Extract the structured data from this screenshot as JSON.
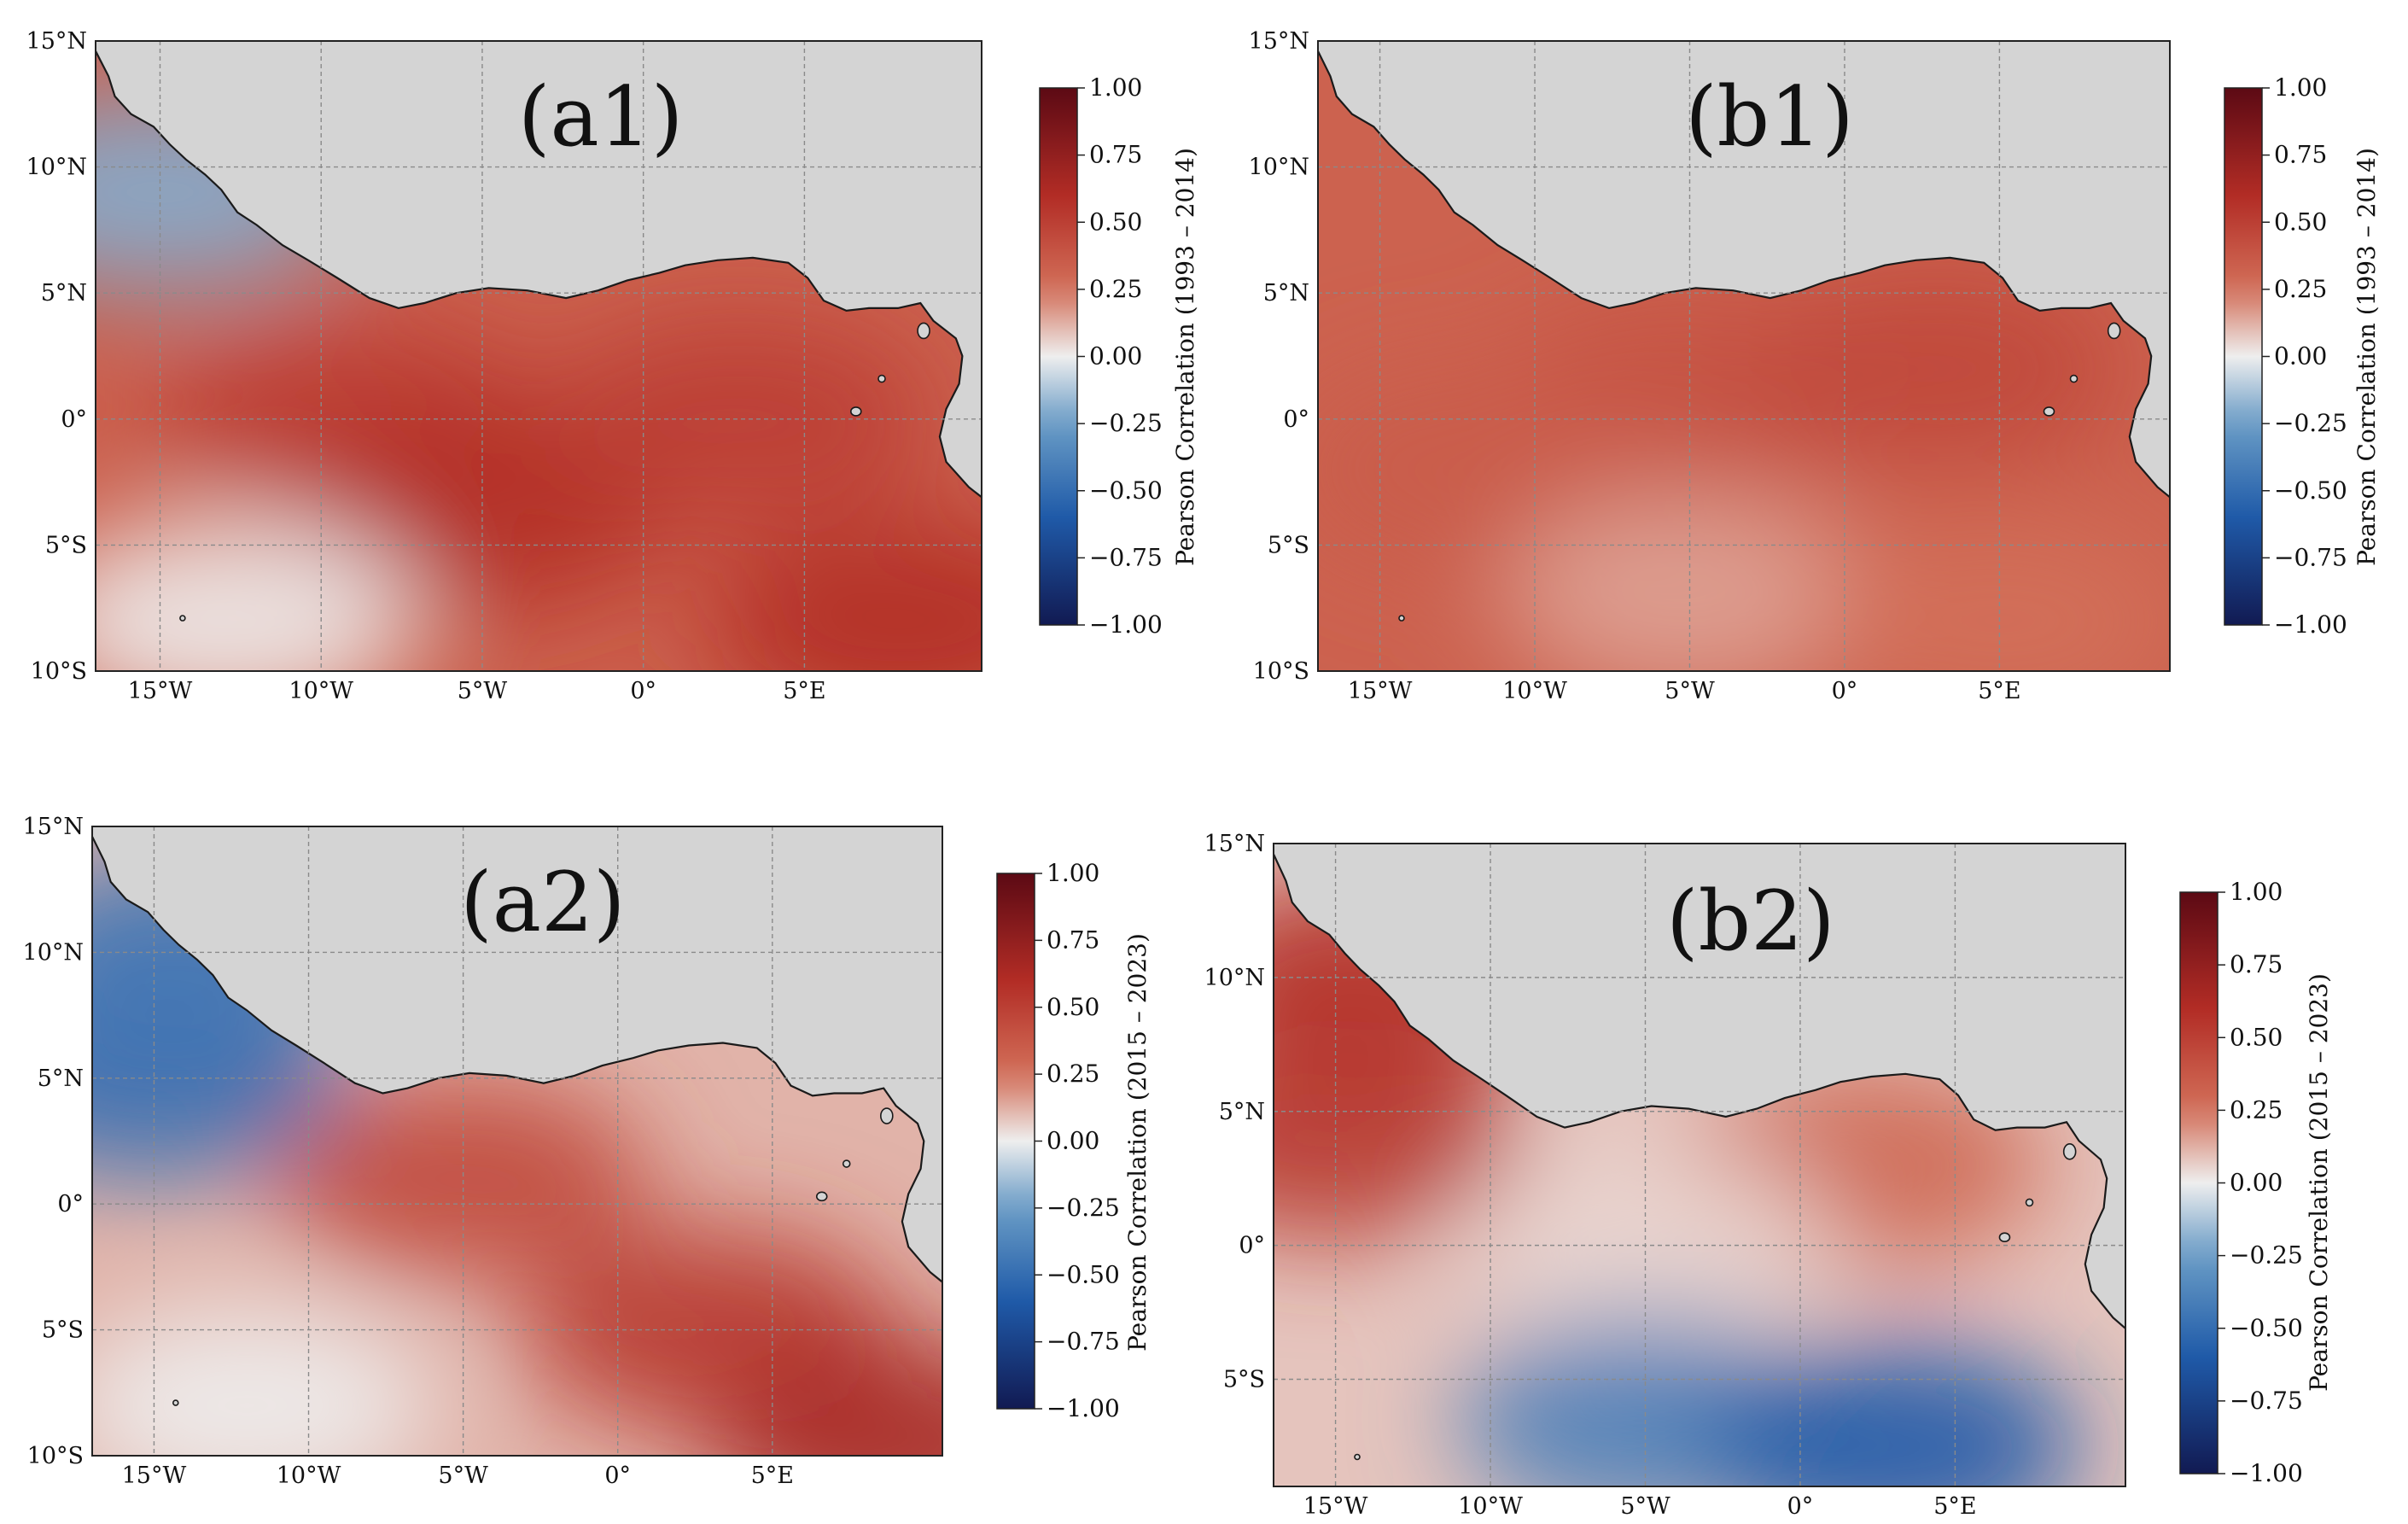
{
  "figure": {
    "colorbar_ticks": [
      "1.00",
      "0.75",
      "0.50",
      "0.25",
      "0.00",
      "−0.25",
      "−0.50",
      "−0.75",
      "−1.00"
    ],
    "colors": {
      "land": "#d4d4d4",
      "coast": "#1a1a1a",
      "grid": "#8a8a8a",
      "cmap_max": "#5c0a14",
      "cmap_pos_strong": "#b22c25",
      "cmap_pos_mid": "#d3705a",
      "cmap_neutral": "#eeeeee",
      "cmap_neg_mid": "#6a9cc6",
      "cmap_neg_strong": "#1f5aa8",
      "cmap_min": "#111a52"
    },
    "panels": [
      {
        "id": "a1",
        "label": "(a1)",
        "period": "1993 – 2014",
        "colorbar_title": "Pearson Correlation (1993 – 2014)",
        "lat_labels": [
          "15°N",
          "10°N",
          "5°N",
          "0°",
          "5°S",
          "10°S"
        ],
        "lon_labels": [
          "15°W",
          "10°W",
          "5°W",
          "0°",
          "5°E"
        ],
        "lat_range": [
          -10,
          15
        ],
        "lon_range": [
          -17,
          10.5
        ],
        "field_description": "strong positive correlation across the Gulf of Guinea; weak negative off Senegal and near 8°S",
        "regions": [
          {
            "lon": -9,
            "lat": 0,
            "value": 0.5
          },
          {
            "lon": -5,
            "lat": -3.5,
            "value": 0.6
          },
          {
            "lon": 3,
            "lat": 0,
            "value": 0.5
          },
          {
            "lon": -15,
            "lat": 9,
            "value": -0.2
          },
          {
            "lon": -13,
            "lat": -8,
            "value": 0.0
          },
          {
            "lon": 8,
            "lat": -8,
            "value": 0.6
          }
        ]
      },
      {
        "id": "b1",
        "label": "(b1)",
        "period": "1993 – 2014",
        "colorbar_title": "Pearson Correlation  (1993 – 2014)",
        "lat_labels": [
          "15°N",
          "10°N",
          "5°N",
          "0°",
          "5°S",
          "10°S"
        ],
        "lon_labels": [
          "15°W",
          "10°W",
          "5°W",
          "0°",
          "5°E"
        ],
        "lat_range": [
          -10,
          15
        ],
        "lon_range": [
          -17,
          10.5
        ],
        "field_description": "moderate positive correlation over most of the domain; near-neutral south of 5°S",
        "regions": [
          {
            "lon": -5,
            "lat": 1,
            "value": 0.4
          },
          {
            "lon": 3,
            "lat": 2,
            "value": 0.45
          },
          {
            "lon": -12,
            "lat": -2,
            "value": 0.35
          },
          {
            "lon": -5,
            "lat": -7,
            "value": 0.15
          },
          {
            "lon": 5,
            "lat": -8,
            "value": 0.25
          }
        ]
      },
      {
        "id": "a2",
        "label": "(a2)",
        "period": "2015 – 2023",
        "colorbar_title": "Pearson Correlation  (2015 – 2023)",
        "lat_labels": [
          "15°N",
          "10°N",
          "5°N",
          "0°",
          "5°S",
          "10°S"
        ],
        "lon_labels": [
          "15°W",
          "10°W",
          "5°W",
          "0°",
          "5°E"
        ],
        "lat_range": [
          -10,
          15
        ],
        "lon_range": [
          -17,
          10.5
        ],
        "field_description": "negative correlation off the NW African coast; positive across the basin, strongest south of the equator",
        "regions": [
          {
            "lon": -15,
            "lat": 5,
            "value": -0.5
          },
          {
            "lon": -14,
            "lat": 10,
            "value": -0.45
          },
          {
            "lon": -5,
            "lat": 1,
            "value": 0.45
          },
          {
            "lon": 3,
            "lat": -5,
            "value": 0.55
          },
          {
            "lon": -12,
            "lat": -8,
            "value": 0.0
          },
          {
            "lon": 9,
            "lat": -9.5,
            "value": 0.65
          }
        ]
      },
      {
        "id": "b2",
        "label": "(b2)",
        "period": "2015 – 2023",
        "colorbar_title": "Pearson Correlation   (2015 – 2023)",
        "lat_labels": [
          "15°N",
          "10°N",
          "5°N",
          "0°",
          "5°S"
        ],
        "lon_labels": [
          "15°W",
          "10°W",
          "5°W",
          "0°",
          "5°E"
        ],
        "lat_range": [
          -9,
          15
        ],
        "lon_range": [
          -17,
          10.5
        ],
        "field_description": "positive correlation along the coast; neutral near the equator; negative band from 5°S southward, strongest near 3°E",
        "regions": [
          {
            "lon": -15,
            "lat": 4,
            "value": 0.55
          },
          {
            "lon": -14,
            "lat": 10,
            "value": 0.6
          },
          {
            "lon": 2,
            "lat": 3,
            "value": 0.3
          },
          {
            "lon": -5,
            "lat": 0,
            "value": 0.05
          },
          {
            "lon": -5,
            "lat": -6.5,
            "value": -0.4
          },
          {
            "lon": 3,
            "lat": -7.5,
            "value": -0.6
          }
        ]
      }
    ]
  }
}
